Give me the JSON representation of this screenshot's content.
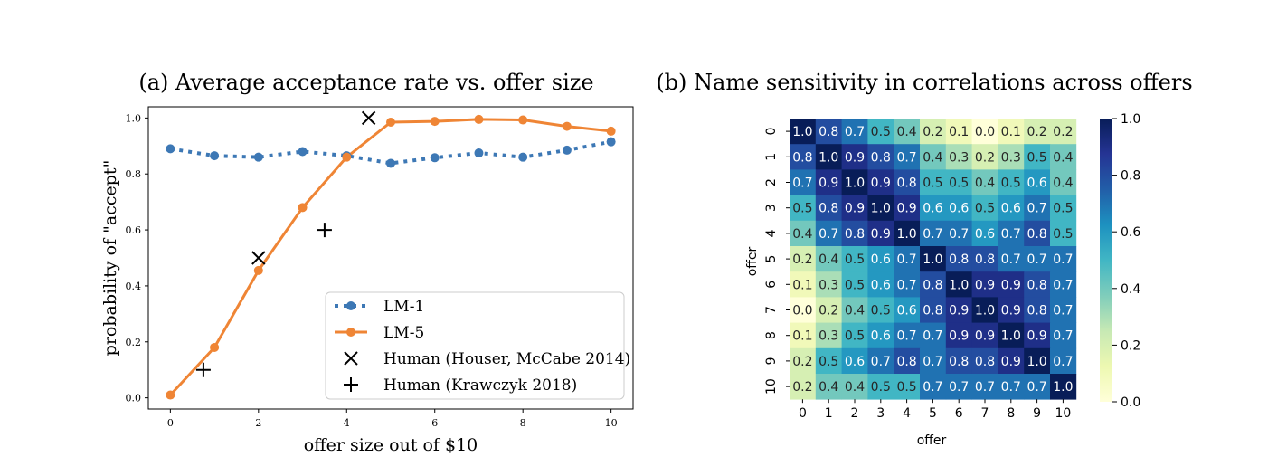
{
  "chart_data": [
    {
      "type": "line",
      "title": "(a) Average acceptance rate vs. offer size",
      "xlabel": "offer size out of $10",
      "ylabel": "probability of \"accept\"",
      "xlim": [
        -0.5,
        10.5
      ],
      "ylim": [
        -0.04,
        1.04
      ],
      "xticks": [
        0,
        2,
        4,
        6,
        8,
        10
      ],
      "yticks": [
        0.0,
        0.2,
        0.4,
        0.6,
        0.8,
        1.0
      ],
      "xtick_labels": [
        "0",
        "2",
        "4",
        "6",
        "8",
        "10"
      ],
      "ytick_labels": [
        "0.0",
        "0.2",
        "0.4",
        "0.6",
        "0.8",
        "1.0"
      ],
      "grid": false,
      "legend_position": "bottom-right",
      "series": [
        {
          "name": "LM-1",
          "style": "dotted",
          "marker": "circle",
          "color": "#3d78b5",
          "x": [
            0,
            1,
            2,
            3,
            4,
            5,
            6,
            7,
            8,
            9,
            10
          ],
          "values": [
            0.89,
            0.865,
            0.86,
            0.88,
            0.865,
            0.838,
            0.858,
            0.875,
            0.86,
            0.885,
            0.915
          ]
        },
        {
          "name": "LM-5",
          "style": "solid",
          "marker": "circle",
          "color": "#ef8535",
          "x": [
            0,
            1,
            2,
            3,
            4,
            5,
            6,
            7,
            8,
            9,
            10
          ],
          "values": [
            0.01,
            0.18,
            0.455,
            0.68,
            0.86,
            0.985,
            0.988,
            0.995,
            0.993,
            0.97,
            0.953
          ]
        },
        {
          "name": "Human (Houser, McCabe 2014)",
          "style": "none",
          "marker": "x",
          "color": "#000000",
          "x": [
            2,
            4.5
          ],
          "values": [
            0.5,
            1.0
          ]
        },
        {
          "name": "Human (Krawczyk 2018)",
          "style": "none",
          "marker": "+",
          "color": "#000000",
          "x": [
            0.75,
            3.5
          ],
          "values": [
            0.1,
            0.6
          ]
        }
      ]
    },
    {
      "type": "heatmap",
      "title": "(b) Name sensitivity in correlations across offers",
      "xlabel": "offer",
      "ylabel": "offer",
      "x_labels": [
        "0",
        "1",
        "2",
        "3",
        "4",
        "5",
        "6",
        "7",
        "8",
        "9",
        "10"
      ],
      "y_labels": [
        "0",
        "1",
        "2",
        "3",
        "4",
        "5",
        "6",
        "7",
        "8",
        "9",
        "10"
      ],
      "colormap": "YlGnBu",
      "vmin": 0.0,
      "vmax": 1.0,
      "colorbar_ticks": [
        "0.0",
        "0.2",
        "0.4",
        "0.6",
        "0.8",
        "1.0"
      ],
      "matrix": [
        [
          1.0,
          0.8,
          0.7,
          0.5,
          0.4,
          0.2,
          0.1,
          0.0,
          0.1,
          0.2,
          0.2
        ],
        [
          0.8,
          1.0,
          0.9,
          0.8,
          0.7,
          0.4,
          0.3,
          0.2,
          0.3,
          0.5,
          0.4
        ],
        [
          0.7,
          0.9,
          1.0,
          0.9,
          0.8,
          0.5,
          0.5,
          0.4,
          0.5,
          0.6,
          0.4
        ],
        [
          0.5,
          0.8,
          0.9,
          1.0,
          0.9,
          0.6,
          0.6,
          0.5,
          0.6,
          0.7,
          0.5
        ],
        [
          0.4,
          0.7,
          0.8,
          0.9,
          1.0,
          0.7,
          0.7,
          0.6,
          0.7,
          0.8,
          0.5
        ],
        [
          0.2,
          0.4,
          0.5,
          0.6,
          0.7,
          1.0,
          0.8,
          0.8,
          0.7,
          0.7,
          0.7
        ],
        [
          0.1,
          0.3,
          0.5,
          0.6,
          0.7,
          0.8,
          1.0,
          0.9,
          0.9,
          0.8,
          0.7
        ],
        [
          0.0,
          0.2,
          0.4,
          0.5,
          0.6,
          0.8,
          0.9,
          1.0,
          0.9,
          0.8,
          0.7
        ],
        [
          0.1,
          0.3,
          0.5,
          0.6,
          0.7,
          0.7,
          0.9,
          0.9,
          1.0,
          0.9,
          0.7
        ],
        [
          0.2,
          0.5,
          0.6,
          0.7,
          0.8,
          0.7,
          0.8,
          0.8,
          0.9,
          1.0,
          0.7
        ],
        [
          0.2,
          0.4,
          0.4,
          0.5,
          0.5,
          0.7,
          0.7,
          0.7,
          0.7,
          0.7,
          1.0
        ]
      ]
    }
  ]
}
